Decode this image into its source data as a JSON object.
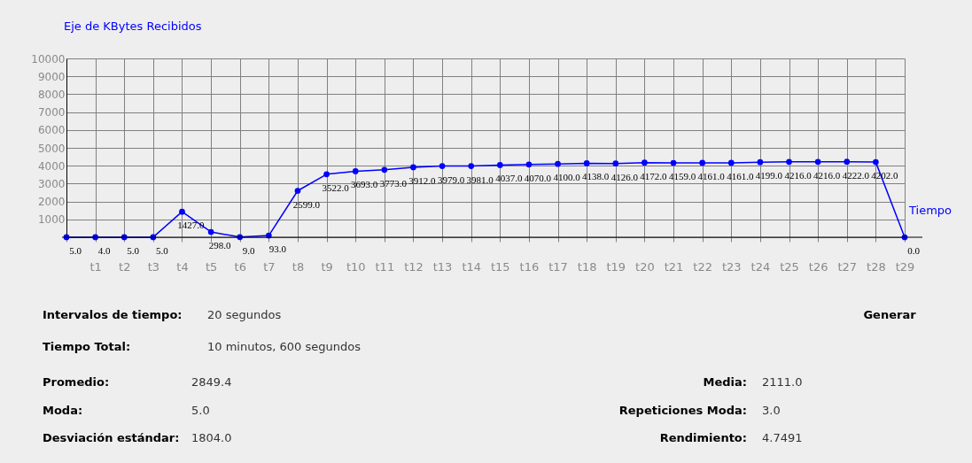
{
  "chart_data": {
    "type": "line",
    "ylabel": "Eje de KBytes Recibidos",
    "xlabel": "Tiempo",
    "categories": [
      null,
      "t1",
      "t2",
      "t3",
      "t4",
      "t5",
      "t6",
      "t7",
      "t8",
      "t9",
      "t10",
      "t11",
      "t12",
      "t13",
      "t14",
      "t15",
      "t16",
      "t17",
      "t18",
      "t19",
      "t20",
      "t21",
      "t22",
      "t23",
      "t24",
      "t25",
      "t26",
      "t27",
      "t28",
      "t29"
    ],
    "series": [
      {
        "color": "#0000ff",
        "values": [
          5,
          4,
          5,
          5,
          1427,
          298,
          9,
          93,
          2599,
          3522,
          3693,
          3773,
          3912,
          3979,
          3981,
          4037,
          4070,
          4100,
          4138,
          4126,
          4172,
          4159,
          4161,
          4161,
          4199,
          4216,
          4216,
          4222,
          4202,
          0
        ],
        "value_labels": [
          "5.0",
          "4.0",
          "5.0",
          "5.0",
          "1427.0",
          "298.0",
          "9.0",
          "93.0",
          "2599.0",
          "3522.0",
          "3693.0",
          "3773.0",
          "3912.0",
          "3979.0",
          "3981.0",
          "4037.0",
          "4070.0",
          "4100.0",
          "4138.0",
          "4126.0",
          "4172.0",
          "4159.0",
          "4161.0",
          "4161.0",
          "4199.0",
          "4216.0",
          "4216.0",
          "4222.0",
          "4202.0",
          "0.0"
        ]
      }
    ],
    "ylim": [
      0,
      10000
    ],
    "yticks": [
      {
        "value": 0,
        "label": null
      },
      1000,
      2000,
      3000,
      4000,
      5000,
      6000,
      7000,
      8000,
      9000,
      10000
    ],
    "grid": true,
    "marker": "circle",
    "line_style": "solid",
    "annotations": [
      "Intervalos de tiempo:",
      "20 segundos",
      "Tiempo Total:",
      "10 minutos, 600 segundos",
      "Promedio:",
      "2849.4",
      "Moda:",
      "5.0",
      "Desviación estándar:",
      "1804.0",
      "Media:",
      "2111.0",
      "Repeticiones Moda:",
      "3.0",
      "Rendimiento:",
      "4.7491",
      "Generar"
    ]
  }
}
